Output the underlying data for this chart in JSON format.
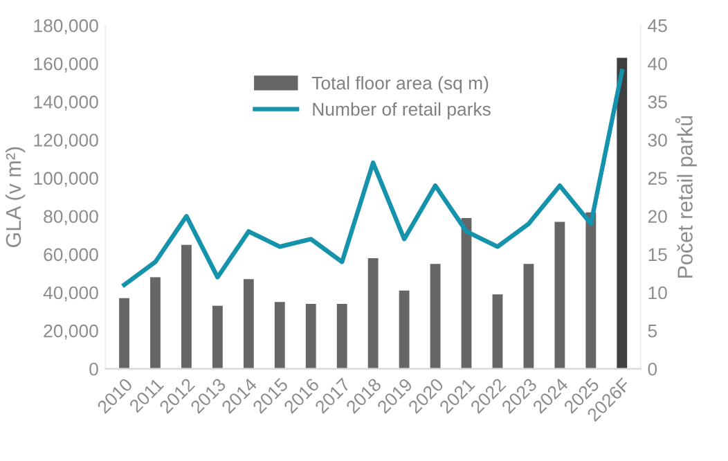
{
  "chart_data": {
    "type": "bar",
    "categories": [
      "2010",
      "2011",
      "2012",
      "2013",
      "2014",
      "2015",
      "2016",
      "2017",
      "2018",
      "2019",
      "2020",
      "2021",
      "2022",
      "2023",
      "2024",
      "2025",
      "2026F"
    ],
    "ylabel": "GLA (v m²)",
    "y2label": "Počet retail parků",
    "series": [
      {
        "name": "Total floor area (sq m)",
        "color": "#666666",
        "colors": [
          "#666666",
          "#666666",
          "#666666",
          "#666666",
          "#666666",
          "#666666",
          "#666666",
          "#666666",
          "#666666",
          "#666666",
          "#666666",
          "#666666",
          "#666666",
          "#666666",
          "#666666",
          "#666666",
          "#3f3f3f"
        ],
        "values": [
          37000,
          48000,
          65000,
          33000,
          47000,
          35000,
          34000,
          34000,
          58000,
          41000,
          55000,
          79000,
          39000,
          55000,
          77000,
          82000,
          163000
        ]
      },
      {
        "name": "Number of retail parks",
        "type": "line",
        "axis": "y2",
        "color": "#1593ac",
        "values": [
          11,
          14,
          20,
          12,
          18,
          16,
          17,
          14,
          27,
          17,
          24,
          18,
          16,
          19,
          24,
          19,
          39
        ]
      }
    ],
    "ylim": [
      0,
      180000
    ],
    "yticks": [
      {
        "value": 0,
        "label": "0"
      },
      {
        "value": 20000,
        "label": "20,000"
      },
      {
        "value": 40000,
        "label": "40,000"
      },
      {
        "value": 60000,
        "label": "60,000"
      },
      {
        "value": 80000,
        "label": "80,000"
      },
      {
        "value": 100000,
        "label": "100,000"
      },
      {
        "value": 120000,
        "label": "120,000"
      },
      {
        "value": 140000,
        "label": "140,000"
      },
      {
        "value": 160000,
        "label": "160,000"
      },
      {
        "value": 180000,
        "label": "180,000"
      }
    ],
    "y2lim": [
      0,
      45
    ],
    "y2ticks": [
      0,
      5,
      10,
      15,
      20,
      25,
      30,
      35,
      40,
      45
    ],
    "legend": "top",
    "grid": false,
    "marker": "none",
    "line_style": "solid"
  }
}
